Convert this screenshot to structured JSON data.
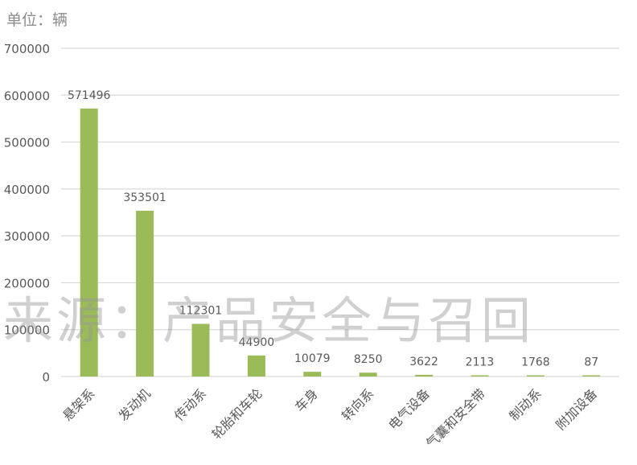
{
  "unit_label": "单位：辆",
  "watermark": "来源：产品安全与召回",
  "colors": {
    "bar": "#9bbb59",
    "grid": "#d9d9d9",
    "text": "#595959",
    "watermark": "#a6a6a6"
  },
  "chart_data": {
    "type": "bar",
    "title": "",
    "xlabel": "",
    "ylabel": "",
    "ylim": [
      0,
      700000
    ],
    "yticks": [
      0,
      100000,
      200000,
      300000,
      400000,
      500000,
      600000,
      700000
    ],
    "grid": true,
    "categories": [
      "悬架系",
      "发动机",
      "传动系",
      "轮胎和车轮",
      "车身",
      "转向系",
      "电气设备",
      "气囊和安全带",
      "制动系",
      "附加设备"
    ],
    "values": [
      571496,
      353501,
      112301,
      44900,
      10079,
      8250,
      3622,
      2113,
      1768,
      87
    ],
    "data_labels": [
      "571496",
      "353501",
      "112301",
      "44900",
      "10079",
      "8250",
      "3622",
      "2113",
      "1768",
      "87"
    ]
  }
}
